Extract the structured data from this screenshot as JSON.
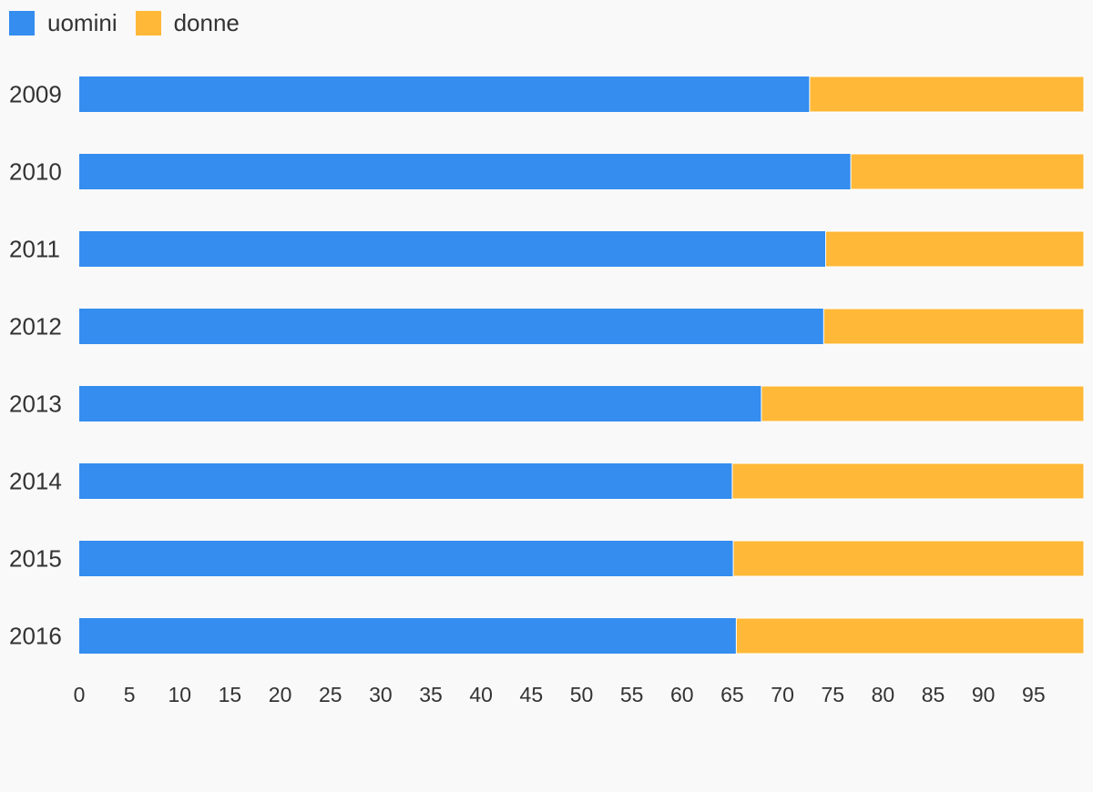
{
  "chart_data": {
    "type": "bar",
    "orientation": "horizontal",
    "stacked": true,
    "categories": [
      "2009",
      "2010",
      "2011",
      "2012",
      "2013",
      "2014",
      "2015",
      "2016"
    ],
    "series": [
      {
        "name": "uomini",
        "color": "#348def",
        "values": [
          72.7,
          76.8,
          74.3,
          74.1,
          67.9,
          65.0,
          65.1,
          65.4
        ]
      },
      {
        "name": "donne",
        "color": "#ffb837",
        "values": [
          27.3,
          23.2,
          25.7,
          25.9,
          32.1,
          35.0,
          34.9,
          34.6
        ]
      }
    ],
    "xlim": [
      0,
      100
    ],
    "xticks": [
      "0",
      "5",
      "10",
      "15",
      "20",
      "25",
      "30",
      "35",
      "40",
      "45",
      "50",
      "55",
      "60",
      "65",
      "70",
      "75",
      "80",
      "85",
      "90",
      "95"
    ],
    "grid": false,
    "legend_position": "top-left"
  },
  "legend": {
    "uomini": "uomini",
    "donne": "donne"
  }
}
